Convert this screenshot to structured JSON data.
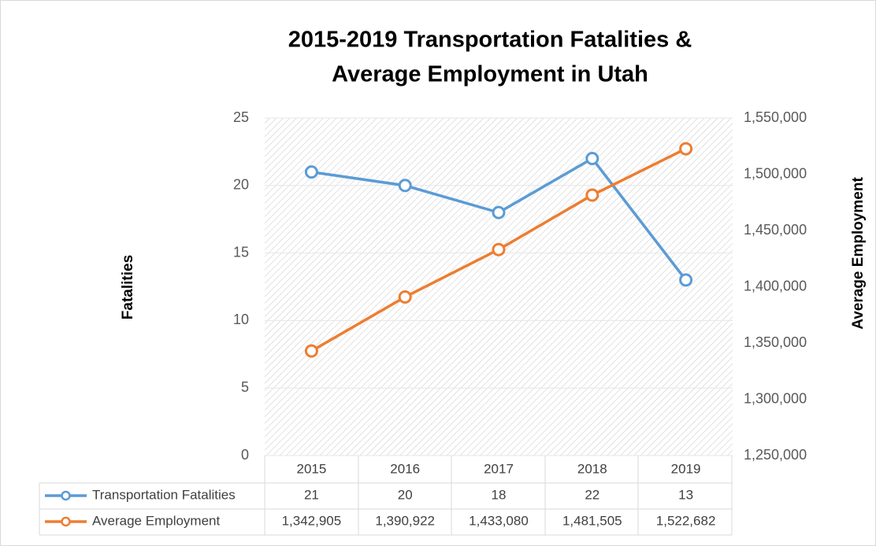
{
  "chart_data": {
    "type": "line",
    "title": [
      "2015-2019 Transportation Fatalities &",
      "Average Employment in Utah"
    ],
    "y_label": "Fatalities",
    "y2_label": "Average Employment",
    "categories": [
      "2015",
      "2016",
      "2017",
      "2018",
      "2019"
    ],
    "ylim": [
      0,
      25
    ],
    "yticks": [
      0,
      5,
      10,
      15,
      20,
      25
    ],
    "y2lim": [
      1250000,
      1550000
    ],
    "y2ticks": [
      {
        "value": 1250000,
        "label": "1,250,000"
      },
      {
        "value": 1300000,
        "label": "1,300,000"
      },
      {
        "value": 1350000,
        "label": "1,350,000"
      },
      {
        "value": 1400000,
        "label": "1,400,000"
      },
      {
        "value": 1450000,
        "label": "1,450,000"
      },
      {
        "value": 1500000,
        "label": "1,500,000"
      },
      {
        "value": 1550000,
        "label": "1,550,000"
      }
    ],
    "grid": true,
    "series": [
      {
        "name": "Transportation Fatalities",
        "color": "#5b9bd5",
        "values": [
          21,
          20,
          18,
          22,
          13
        ]
      },
      {
        "name": "Average Employment",
        "color": "#ed7d31",
        "axis": "y2",
        "values": [
          1342905,
          1390922,
          1433080,
          1481505,
          1522682
        ],
        "value_labels": [
          "1,342,905",
          "1,390,922",
          "1,433,080",
          "1,481,505",
          "1,522,682"
        ]
      }
    ]
  }
}
